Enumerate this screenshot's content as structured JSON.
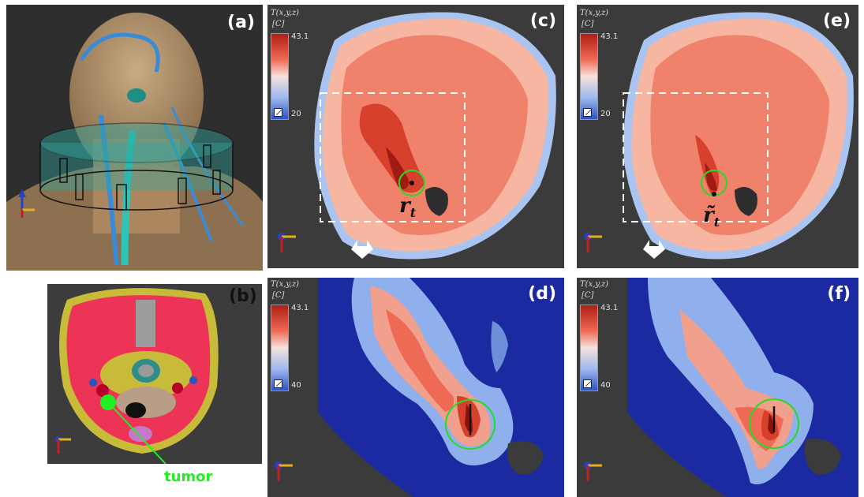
{
  "panels": {
    "a": {
      "label": "(a)"
    },
    "b": {
      "label": "(b)",
      "annotation": "tumor"
    },
    "c": {
      "label": "(c)",
      "point_label": "r",
      "point_sub": "t"
    },
    "d": {
      "label": "(d)"
    },
    "e": {
      "label": "(e)",
      "point_label": "r̃",
      "point_sub": "t"
    },
    "f": {
      "label": "(f)"
    }
  },
  "colorbar": {
    "title": "T(x,y,z)",
    "unit": "[C]",
    "max_top": "43.1",
    "min_top": "20",
    "max_bottom": "43.1",
    "min_bottom": "40"
  },
  "axes_triad": {
    "x": "x",
    "y": "y"
  },
  "colors": {
    "panel_bg": "#3b3b3b",
    "heat_core": "#b01e16",
    "heat_mid": "#ef6a54",
    "heat_light": "#f6b6a2",
    "cold": "#1b2aa0",
    "tumor_circle": "#22dd22"
  }
}
